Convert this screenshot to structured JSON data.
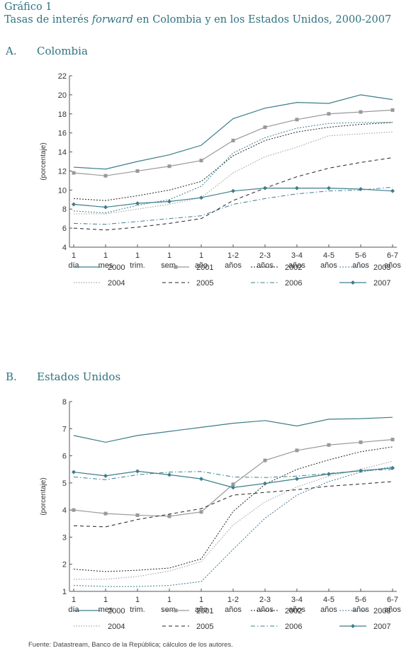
{
  "header": {
    "title": "Gráfico 1",
    "subtitle_pre": "Tasas de interés ",
    "subtitle_italic": "forward",
    "subtitle_post": " en Colombia y en los Estados Unidos, 2000-2007"
  },
  "footer": "Fuente: Datastream, Banco de la República; cálculos de los autores.",
  "legend_order": [
    "2000",
    "2001",
    "2002",
    "2003",
    "2004",
    "2005",
    "2006",
    "2007"
  ],
  "series_colors": {
    "teal": "#3d7d8c",
    "gray": "#999999",
    "black": "#222222",
    "lightgray": "#a9a9a9"
  },
  "chart_data": [
    {
      "panel_letter": "A.",
      "panel_title": "Colombia",
      "type": "line",
      "ylabel": "(porcentaje)",
      "ylim": [
        4,
        22
      ],
      "yticks": [
        4,
        6,
        8,
        10,
        12,
        14,
        16,
        18,
        20,
        22
      ],
      "categories": [
        [
          "1",
          "día"
        ],
        [
          "1",
          "mes"
        ],
        [
          "1",
          "trim."
        ],
        [
          "1",
          "sem."
        ],
        [
          "1",
          "año"
        ],
        [
          "1-2",
          "años"
        ],
        [
          "2-3",
          "años"
        ],
        [
          "3-4",
          "años"
        ],
        [
          "4-5",
          "años"
        ],
        [
          "5-6",
          "años"
        ],
        [
          "6-7",
          "años"
        ]
      ],
      "grid": false,
      "legend_position": "bottom",
      "series": [
        {
          "name": "2000",
          "values": [
            12.4,
            12.2,
            13.0,
            13.7,
            14.7,
            17.5,
            18.6,
            19.2,
            19.1,
            20.0,
            19.5
          ]
        },
        {
          "name": "2001",
          "values": [
            11.8,
            11.5,
            12.0,
            12.5,
            13.1,
            15.2,
            16.6,
            17.4,
            18.0,
            18.2,
            18.4
          ]
        },
        {
          "name": "2002",
          "values": [
            9.1,
            8.9,
            9.4,
            10.0,
            10.9,
            13.6,
            15.2,
            16.1,
            16.6,
            16.9,
            17.1
          ]
        },
        {
          "name": "2003",
          "values": [
            7.8,
            7.6,
            8.4,
            9.0,
            10.4,
            13.9,
            15.5,
            16.5,
            17.0,
            17.1,
            17.1
          ]
        },
        {
          "name": "2004",
          "values": [
            7.5,
            7.5,
            8.0,
            8.5,
            9.2,
            11.8,
            13.5,
            14.5,
            15.7,
            15.9,
            16.1
          ]
        },
        {
          "name": "2005",
          "values": [
            6.0,
            5.8,
            6.1,
            6.5,
            7.0,
            8.9,
            10.2,
            11.4,
            12.3,
            12.9,
            13.4
          ]
        },
        {
          "name": "2006",
          "values": [
            6.5,
            6.4,
            6.7,
            7.0,
            7.3,
            8.5,
            9.1,
            9.6,
            9.9,
            10.0,
            10.3
          ]
        },
        {
          "name": "2007",
          "values": [
            8.5,
            8.2,
            8.6,
            8.8,
            9.2,
            9.9,
            10.2,
            10.2,
            10.2,
            10.1,
            9.9
          ]
        }
      ]
    },
    {
      "panel_letter": "B.",
      "panel_title": "Estados Unidos",
      "type": "line",
      "ylabel": "(porcentaje)",
      "ylim": [
        1,
        8
      ],
      "yticks": [
        1,
        2,
        3,
        4,
        5,
        6,
        7,
        8
      ],
      "categories": [
        [
          "1",
          "día"
        ],
        [
          "1",
          "mes"
        ],
        [
          "1",
          "trim."
        ],
        [
          "1",
          "sem."
        ],
        [
          "1",
          "año"
        ],
        [
          "1-2",
          "años"
        ],
        [
          "2-3",
          "años"
        ],
        [
          "3-4",
          "años"
        ],
        [
          "4-5",
          "años"
        ],
        [
          "5-6",
          "años"
        ],
        [
          "6-7",
          "años"
        ]
      ],
      "grid": false,
      "legend_position": "bottom",
      "series": [
        {
          "name": "2000",
          "values": [
            6.75,
            6.5,
            6.75,
            6.9,
            7.05,
            7.2,
            7.3,
            7.1,
            7.35,
            7.37,
            7.42
          ]
        },
        {
          "name": "2001",
          "values": [
            4.0,
            3.87,
            3.81,
            3.77,
            3.93,
            4.95,
            5.83,
            6.2,
            6.4,
            6.5,
            6.6
          ]
        },
        {
          "name": "2002",
          "values": [
            1.82,
            1.73,
            1.78,
            1.86,
            2.2,
            3.95,
            4.95,
            5.5,
            5.85,
            6.15,
            6.33
          ]
        },
        {
          "name": "2003",
          "values": [
            1.22,
            1.18,
            1.18,
            1.22,
            1.36,
            2.55,
            3.7,
            4.55,
            5.05,
            5.4,
            5.6
          ]
        },
        {
          "name": "2004",
          "values": [
            1.45,
            1.45,
            1.55,
            1.75,
            2.1,
            3.45,
            4.3,
            4.85,
            5.25,
            5.5,
            5.8
          ]
        },
        {
          "name": "2005",
          "values": [
            3.42,
            3.38,
            3.65,
            3.85,
            4.05,
            4.55,
            4.65,
            4.75,
            4.88,
            4.96,
            5.05
          ]
        },
        {
          "name": "2006",
          "values": [
            5.22,
            5.12,
            5.3,
            5.4,
            5.42,
            5.22,
            5.2,
            5.25,
            5.35,
            5.45,
            5.5
          ]
        },
        {
          "name": "2007",
          "values": [
            5.4,
            5.26,
            5.43,
            5.3,
            5.15,
            4.83,
            4.98,
            5.15,
            5.33,
            5.45,
            5.55
          ]
        }
      ]
    }
  ]
}
